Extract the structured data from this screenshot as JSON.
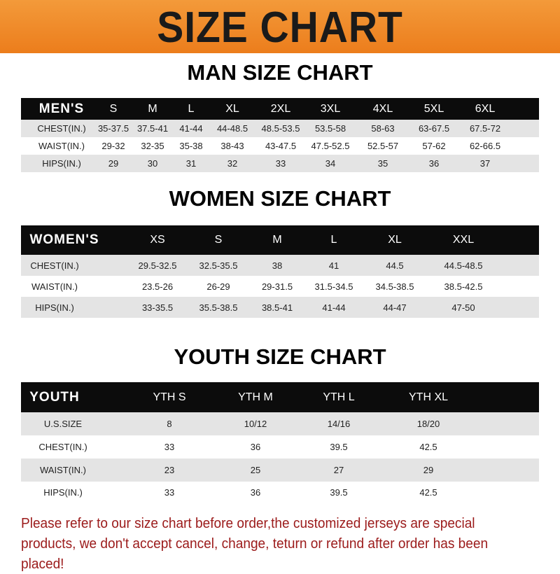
{
  "title": "SIZE CHART",
  "men": {
    "title": "MAN SIZE CHART",
    "headers": [
      "MEN'S",
      "S",
      "M",
      "L",
      "XL",
      "2XL",
      "3XL",
      "4XL",
      "5XL",
      "6XL"
    ],
    "rows": [
      [
        "CHEST(IN.)",
        "35-37.5",
        "37.5-41",
        "41-44",
        "44-48.5",
        "48.5-53.5",
        "53.5-58",
        "58-63",
        "63-67.5",
        "67.5-72"
      ],
      [
        "WAIST(IN.)",
        "29-32",
        "32-35",
        "35-38",
        "38-43",
        "43-47.5",
        "47.5-52.5",
        "52.5-57",
        "57-62",
        "62-66.5"
      ],
      [
        "HIPS(IN.)",
        "29",
        "30",
        "31",
        "32",
        "33",
        "34",
        "35",
        "36",
        "37"
      ]
    ]
  },
  "women": {
    "title": "WOMEN SIZE CHART",
    "headers": [
      "WOMEN'S",
      "XS",
      "S",
      "M",
      "L",
      "XL",
      "XXL"
    ],
    "rows": [
      [
        "CHEST(IN.)",
        "29.5-32.5",
        "32.5-35.5",
        "38",
        "41",
        "44.5",
        "44.5-48.5"
      ],
      [
        "WAIST(IN.)",
        "23.5-26",
        "26-29",
        "29-31.5",
        "31.5-34.5",
        "34.5-38.5",
        "38.5-42.5"
      ],
      [
        "HIPS(IN.)",
        "33-35.5",
        "35.5-38.5",
        "38.5-41",
        "41-44",
        "44-47",
        "47-50"
      ]
    ]
  },
  "youth": {
    "title": "YOUTH SIZE CHART",
    "headers": [
      "YOUTH",
      "YTH S",
      "YTH M",
      "YTH L",
      "YTH XL"
    ],
    "rows": [
      [
        "U.S.SIZE",
        "8",
        "10/12",
        "14/16",
        "18/20"
      ],
      [
        "CHEST(IN.)",
        "33",
        "36",
        "39.5",
        "42.5"
      ],
      [
        "WAIST(IN.)",
        "23",
        "25",
        "27",
        "29"
      ],
      [
        "HIPS(IN.)",
        "33",
        "36",
        "39.5",
        "42.5"
      ]
    ]
  },
  "note": "Please refer to our size chart before order,the customized jerseys are special products, we don't accept cancel, change, teturn or refund after order has been placed!",
  "colors": {
    "banner": "#ec7d1c",
    "header_row": "#0c0c0c",
    "stripe": "#e4e4e4",
    "note": "#9b1a1a"
  }
}
